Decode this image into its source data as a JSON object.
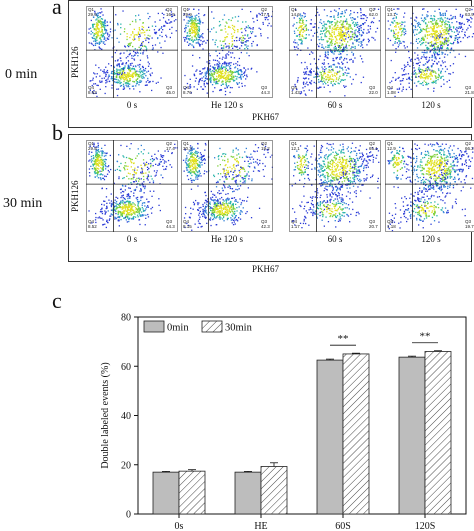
{
  "panels": {
    "a": "a",
    "b": "b",
    "c": "c"
  },
  "row_labels": [
    "0 min",
    "30 min"
  ],
  "flow": {
    "x_axis_title": "PKH67",
    "y_axis_title": "PKH126",
    "quadrant_names": [
      "Q1",
      "Q2",
      "Q3",
      "Q4"
    ],
    "rows": [
      {
        "row": "0 min",
        "plots": [
          {
            "sample": "0 s",
            "q1": "29.6",
            "q2": "16.9",
            "q3": "45.0",
            "q4": "8.52"
          },
          {
            "sample": "He 120 s",
            "q1": "29.9",
            "q2": "17.1",
            "q3": "44.3",
            "q4": "8.76"
          },
          {
            "sample": "60 s",
            "q1": "14.6",
            "q2": "62.0",
            "q3": "22.0",
            "q4": "1.43"
          },
          {
            "sample": "120 s",
            "q1": "13.1",
            "q2": "63.9",
            "q3": "21.8",
            "q4": "1.08"
          }
        ]
      },
      {
        "row": "30 min",
        "plots": [
          {
            "sample": "0 s",
            "q1": "29.8",
            "q2": "17.4",
            "q3": "44.3",
            "q4": "8.52"
          },
          {
            "sample": "He 120 s",
            "q1": "30.3",
            "q2": "19.2",
            "q3": "42.3",
            "q4": "8.15"
          },
          {
            "sample": "60 s",
            "q1": "12.1",
            "q2": "65.1",
            "q3": "20.7",
            "q4": "1.17"
          },
          {
            "sample": "120 s",
            "q1": "12.9",
            "q2": "66.2",
            "q3": "19.7",
            "q4": "1.18"
          }
        ]
      }
    ]
  },
  "chart_data": {
    "type": "bar",
    "categories": [
      "0s",
      "HE",
      "60S",
      "120S"
    ],
    "series": [
      {
        "name": "0min",
        "values": [
          17.0,
          17.0,
          62.5,
          63.7
        ],
        "errors": [
          0.3,
          0.3,
          0.4,
          0.4
        ],
        "fill": "#bdbdbd",
        "pattern": "solid"
      },
      {
        "name": "30min",
        "values": [
          17.4,
          19.3,
          65.0,
          66.0
        ],
        "errors": [
          0.6,
          1.5,
          0.3,
          0.3
        ],
        "fill": "#ffffff",
        "pattern": "hatched"
      }
    ],
    "ylabel": "Double labeled events (%)",
    "xlabel": "",
    "ylim": [
      0,
      80
    ],
    "yticks": [
      0,
      20,
      40,
      60,
      80
    ],
    "significance": [
      {
        "category": "60S",
        "label": "**"
      },
      {
        "category": "120S",
        "label": "**"
      }
    ],
    "legend": "top-left",
    "grid": false
  }
}
